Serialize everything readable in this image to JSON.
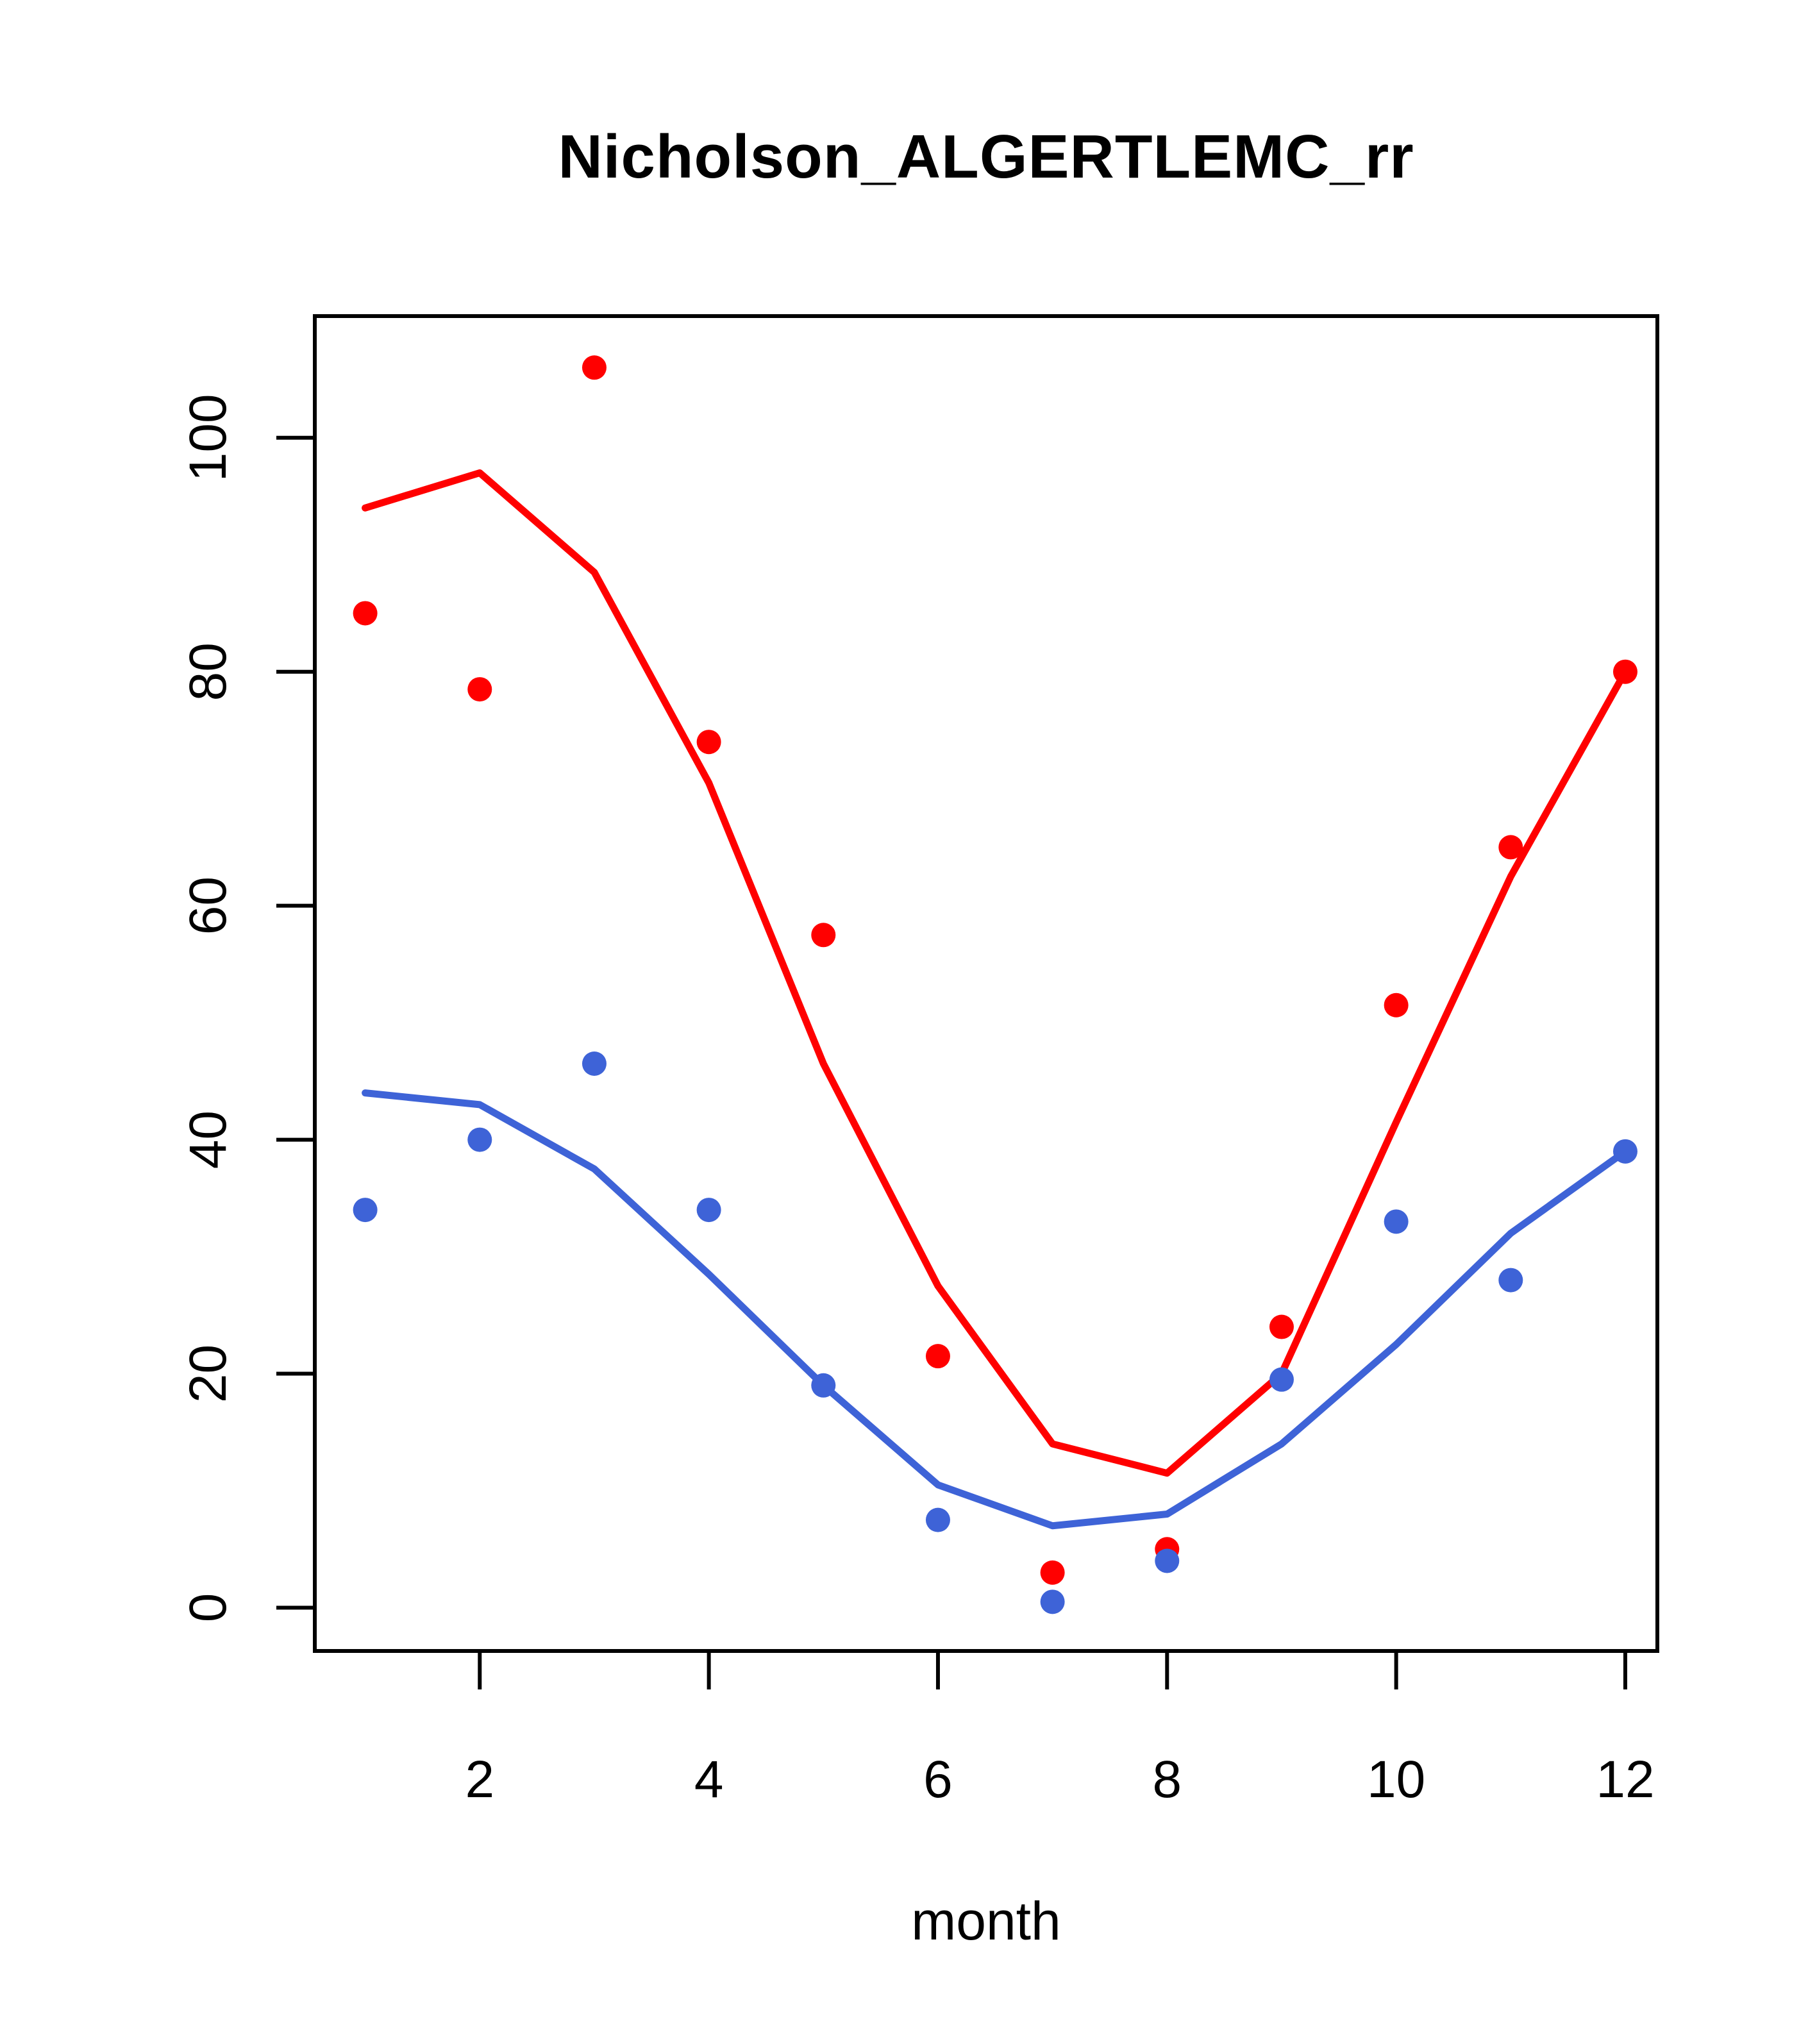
{
  "page": {
    "background": "#ffffff"
  },
  "chart_data": {
    "type": "scatter",
    "title": "Nicholson_ALGERTLEMC_rr",
    "xlabel": "month",
    "ylabel": "",
    "grid": false,
    "legend_position": "none",
    "x": [
      1,
      2,
      3,
      4,
      5,
      6,
      7,
      8,
      9,
      10,
      11,
      12
    ],
    "x_ticks": [
      2,
      4,
      6,
      8,
      10,
      12
    ],
    "y_ticks": [
      0,
      20,
      40,
      60,
      80,
      100
    ],
    "xlim": [
      0.56,
      12.28
    ],
    "ylim": [
      -3.7,
      110.4
    ],
    "colors": {
      "red": "#FF0000",
      "blue": "#3E63D7",
      "axis": "#000000"
    },
    "series": [
      {
        "name": "red-observed-points",
        "kind": "points",
        "color": "#FF0000",
        "values": [
          85,
          78.5,
          106,
          74,
          57.5,
          21.5,
          3,
          5,
          24,
          51.5,
          65,
          80
        ]
      },
      {
        "name": "blue-observed-points",
        "kind": "points",
        "color": "#3E63D7",
        "values": [
          34,
          40,
          46.5,
          34,
          19,
          7.5,
          0.5,
          4,
          19.5,
          33,
          28,
          39
        ]
      },
      {
        "name": "red-fitted-line",
        "kind": "line",
        "color": "#FF0000",
        "values": [
          94,
          97,
          88.5,
          70.5,
          46.5,
          27.5,
          14,
          11.5,
          20,
          41.5,
          62.5,
          80
        ]
      },
      {
        "name": "blue-fitted-line",
        "kind": "line",
        "color": "#3E63D7",
        "values": [
          44,
          43,
          37.5,
          28.5,
          19,
          10.5,
          7,
          8,
          14,
          22.5,
          32,
          39
        ]
      }
    ]
  }
}
